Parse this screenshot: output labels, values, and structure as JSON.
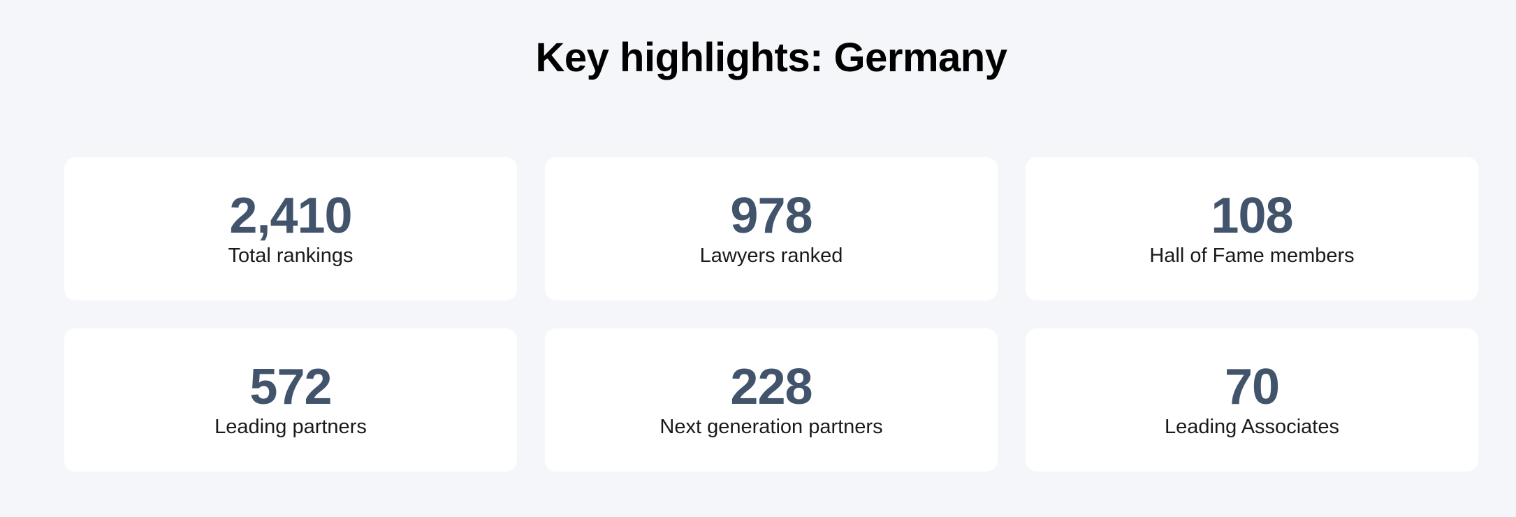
{
  "page": {
    "title": "Key highlights: Germany"
  },
  "stats": [
    {
      "value": "2,410",
      "label": "Total rankings"
    },
    {
      "value": "978",
      "label": "Lawyers ranked"
    },
    {
      "value": "108",
      "label": "Hall of Fame members"
    },
    {
      "value": "572",
      "label": "Leading partners"
    },
    {
      "value": "228",
      "label": "Next generation partners"
    },
    {
      "value": "70",
      "label": "Leading Associates"
    }
  ],
  "colors": {
    "background": "#f5f6fa",
    "card": "#ffffff",
    "value": "#41546b",
    "label": "#1a1a1a",
    "title": "#000000"
  }
}
